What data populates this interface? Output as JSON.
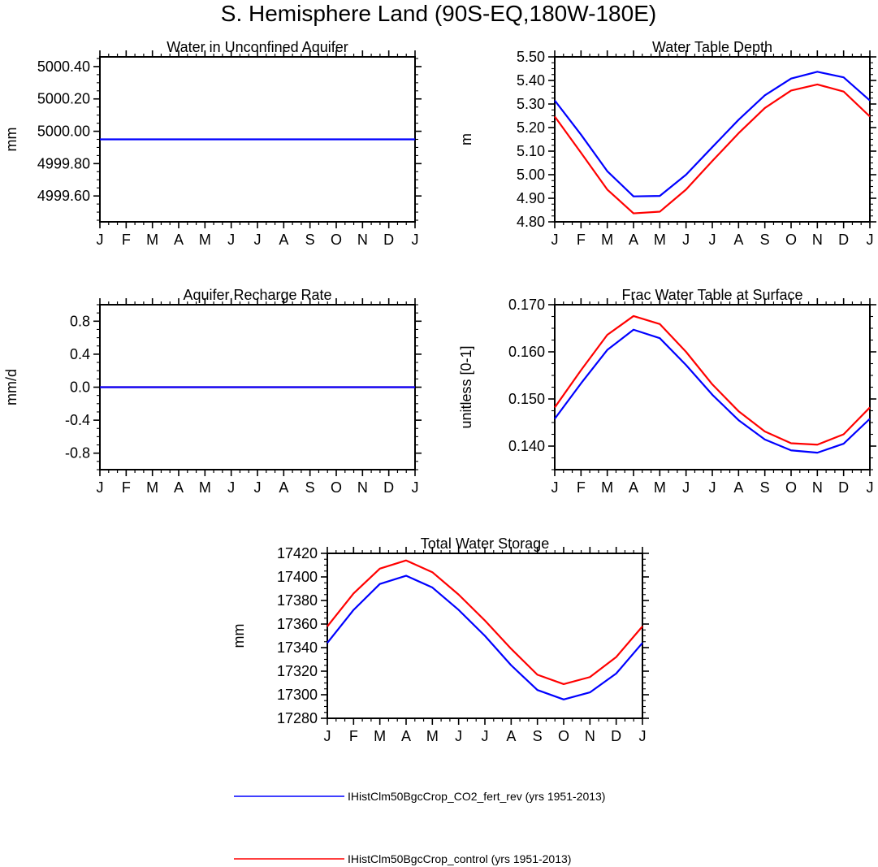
{
  "figure": {
    "title": "S. Hemisphere Land (90S-EQ,180W-180E)"
  },
  "colors": {
    "co2_fert": "#0000ff",
    "control": "#ff0000",
    "axis": "#000000"
  },
  "legend": {
    "placement": "bottom-center",
    "entries": [
      {
        "label": "IHistClm50BgcCrop_CO2_fert_rev (yrs 1951-2013)",
        "color": "#0000ff"
      },
      {
        "label": "IHistClm50BgcCrop_control (yrs 1951-2013)",
        "color": "#ff0000"
      }
    ]
  },
  "chart_data": [
    {
      "id": "aquifer",
      "type": "line",
      "title": "Water in Unconfined Aquifer",
      "ylabel": "mm",
      "xlabel": "",
      "categories": [
        "J",
        "F",
        "M",
        "A",
        "M",
        "J",
        "J",
        "A",
        "S",
        "O",
        "N",
        "D",
        "J"
      ],
      "ylim": [
        4999.44,
        5000.46
      ],
      "yticks": [
        4999.6,
        4999.8,
        5000.0,
        5000.2,
        5000.4
      ],
      "yticklabels": [
        "4999.60",
        "4999.80",
        "5000.00",
        "5000.20",
        "5000.40"
      ],
      "series": [
        {
          "name": "IHistClm50BgcCrop_CO2_fert_rev (yrs 1951-2013)",
          "color": "#0000ff",
          "values": [
            4999.95,
            4999.95,
            4999.95,
            4999.95,
            4999.95,
            4999.95,
            4999.95,
            4999.95,
            4999.95,
            4999.95,
            4999.95,
            4999.95,
            4999.95
          ]
        }
      ],
      "grid": false
    },
    {
      "id": "wtd",
      "type": "line",
      "title": "Water Table Depth",
      "ylabel": "m",
      "xlabel": "",
      "categories": [
        "J",
        "F",
        "M",
        "A",
        "M",
        "J",
        "J",
        "A",
        "S",
        "O",
        "N",
        "D",
        "J"
      ],
      "ylim": [
        4.8,
        5.5
      ],
      "yticks": [
        4.8,
        4.9,
        5.0,
        5.1,
        5.2,
        5.3,
        5.4,
        5.5
      ],
      "yticklabels": [
        "4.80",
        "4.90",
        "5.00",
        "5.10",
        "5.20",
        "5.30",
        "5.40",
        "5.50"
      ],
      "series": [
        {
          "name": "IHistClm50BgcCrop_CO2_fert_rev (yrs 1951-2013)",
          "color": "#0000ff",
          "values": [
            5.315,
            5.17,
            5.015,
            4.908,
            4.91,
            5.0,
            5.117,
            5.233,
            5.337,
            5.408,
            5.437,
            5.413,
            5.315
          ]
        },
        {
          "name": "IHistClm50BgcCrop_control (yrs 1951-2013)",
          "color": "#ff0000",
          "values": [
            5.247,
            5.093,
            4.937,
            4.836,
            4.843,
            4.937,
            5.058,
            5.176,
            5.283,
            5.357,
            5.383,
            5.353,
            5.247
          ]
        }
      ],
      "grid": false
    },
    {
      "id": "recharge",
      "type": "line",
      "title": "Aquifer Recharge Rate",
      "ylabel": "mm/d",
      "xlabel": "",
      "categories": [
        "J",
        "F",
        "M",
        "A",
        "M",
        "J",
        "J",
        "A",
        "S",
        "O",
        "N",
        "D",
        "J"
      ],
      "ylim": [
        -1.0,
        1.0
      ],
      "yticks": [
        -0.8,
        -0.4,
        0.0,
        0.4,
        0.8
      ],
      "yticklabels": [
        "-0.8",
        "-0.4",
        "0.0",
        "0.4",
        "0.8"
      ],
      "series": [
        {
          "name": "IHistClm50BgcCrop_CO2_fert_rev (yrs 1951-2013)",
          "color": "#0000ff",
          "values": [
            0,
            0,
            0,
            0,
            0,
            0,
            0,
            0,
            0,
            0,
            0,
            0,
            0
          ]
        },
        {
          "name": "IHistClm50BgcCrop_control (yrs 1951-2013)",
          "color": "#ff0000",
          "values": [
            0,
            0,
            0,
            0,
            0,
            0,
            0,
            0,
            0,
            0,
            0,
            0,
            0
          ]
        }
      ],
      "grid": false
    },
    {
      "id": "fwts",
      "type": "line",
      "title": "Frac Water Table at Surface",
      "ylabel": "unitless [0-1]",
      "xlabel": "",
      "categories": [
        "J",
        "F",
        "M",
        "A",
        "M",
        "J",
        "J",
        "A",
        "S",
        "O",
        "N",
        "D",
        "J"
      ],
      "ylim": [
        0.135,
        0.17
      ],
      "yticks": [
        0.14,
        0.15,
        0.16,
        0.17
      ],
      "yticklabels": [
        "0.140",
        "0.150",
        "0.160",
        "0.170"
      ],
      "series": [
        {
          "name": "IHistClm50BgcCrop_CO2_fert_rev (yrs 1951-2013)",
          "color": "#0000ff",
          "values": [
            0.1458,
            0.1533,
            0.1604,
            0.1647,
            0.1629,
            0.1572,
            0.1509,
            0.1455,
            0.1414,
            0.1391,
            0.1386,
            0.1405,
            0.1458
          ]
        },
        {
          "name": "IHistClm50BgcCrop_control (yrs 1951-2013)",
          "color": "#ff0000",
          "values": [
            0.1482,
            0.1561,
            0.1636,
            0.1676,
            0.1659,
            0.16,
            0.1531,
            0.1474,
            0.1431,
            0.1406,
            0.1403,
            0.1425,
            0.1482
          ]
        }
      ],
      "grid": false
    },
    {
      "id": "tws",
      "type": "line",
      "title": "Total Water Storage",
      "ylabel": "mm",
      "xlabel": "",
      "categories": [
        "J",
        "F",
        "M",
        "A",
        "M",
        "J",
        "J",
        "A",
        "S",
        "O",
        "N",
        "D",
        "J"
      ],
      "ylim": [
        17280,
        17420
      ],
      "yticks": [
        17280,
        17300,
        17320,
        17340,
        17360,
        17380,
        17400,
        17420
      ],
      "yticklabels": [
        "17280",
        "17300",
        "17320",
        "17340",
        "17360",
        "17380",
        "17400",
        "17420"
      ],
      "series": [
        {
          "name": "IHistClm50BgcCrop_CO2_fert_rev (yrs 1951-2013)",
          "color": "#0000ff",
          "values": [
            17344,
            17372,
            17394,
            17401,
            17391,
            17372,
            17350,
            17325,
            17304,
            17296,
            17302,
            17318,
            17344
          ]
        },
        {
          "name": "IHistClm50BgcCrop_control (yrs 1951-2013)",
          "color": "#ff0000",
          "values": [
            17358,
            17386,
            17407,
            17414,
            17404,
            17385,
            17363,
            17339,
            17317,
            17309,
            17315,
            17332,
            17358
          ]
        }
      ],
      "grid": false
    }
  ]
}
